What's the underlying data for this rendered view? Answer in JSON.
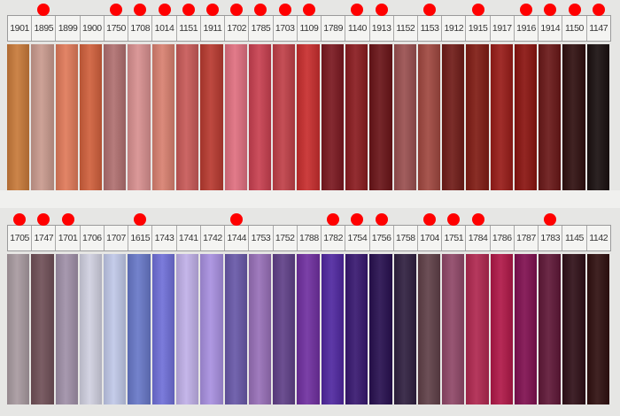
{
  "marker_color": "#ff0000",
  "rows": [
    {
      "swatches": [
        {
          "code": "1901",
          "color": "#c87a3a",
          "marked": false
        },
        {
          "code": "1895",
          "color": "#c99a8e",
          "marked": true
        },
        {
          "code": "1899",
          "color": "#e07a5a",
          "marked": false
        },
        {
          "code": "1900",
          "color": "#d0603c",
          "marked": false
        },
        {
          "code": "1750",
          "color": "#b07070",
          "marked": true
        },
        {
          "code": "1708",
          "color": "#d89090",
          "marked": true
        },
        {
          "code": "1014",
          "color": "#d88070",
          "marked": true
        },
        {
          "code": "1151",
          "color": "#c85a58",
          "marked": true
        },
        {
          "code": "1911",
          "color": "#b83a30",
          "marked": true
        },
        {
          "code": "1702",
          "color": "#e07080",
          "marked": true
        },
        {
          "code": "1785",
          "color": "#c84050",
          "marked": true
        },
        {
          "code": "1703",
          "color": "#c04048",
          "marked": true
        },
        {
          "code": "1109",
          "color": "#c82e2e",
          "marked": true
        },
        {
          "code": "1789",
          "color": "#7a1820",
          "marked": false
        },
        {
          "code": "1140",
          "color": "#8a1c20",
          "marked": true
        },
        {
          "code": "1913",
          "color": "#6a1418",
          "marked": true
        },
        {
          "code": "1152",
          "color": "#9a5050",
          "marked": false
        },
        {
          "code": "1153",
          "color": "#a04840",
          "marked": true
        },
        {
          "code": "1912",
          "color": "#701c18",
          "marked": false
        },
        {
          "code": "1915",
          "color": "#801c14",
          "marked": true
        },
        {
          "code": "1917",
          "color": "#981c18",
          "marked": false
        },
        {
          "code": "1916",
          "color": "#8a1410",
          "marked": true
        },
        {
          "code": "1914",
          "color": "#6a1818",
          "marked": true
        },
        {
          "code": "1150",
          "color": "#301010",
          "marked": true
        },
        {
          "code": "1147",
          "color": "#1a1010",
          "marked": true
        }
      ]
    },
    {
      "swatches": [
        {
          "code": "1705",
          "color": "#a89aa0",
          "marked": true
        },
        {
          "code": "1747",
          "color": "#705058",
          "marked": true
        },
        {
          "code": "1701",
          "color": "#a090a8",
          "marked": true
        },
        {
          "code": "1706",
          "color": "#d0d0e0",
          "marked": false
        },
        {
          "code": "1707",
          "color": "#c0c8e8",
          "marked": false
        },
        {
          "code": "1615",
          "color": "#6878c8",
          "marked": true
        },
        {
          "code": "1743",
          "color": "#7070d8",
          "marked": false
        },
        {
          "code": "1741",
          "color": "#c0b0e8",
          "marked": false
        },
        {
          "code": "1742",
          "color": "#a890e0",
          "marked": false
        },
        {
          "code": "1744",
          "color": "#6858a8",
          "marked": true
        },
        {
          "code": "1753",
          "color": "#9870b8",
          "marked": false
        },
        {
          "code": "1752",
          "color": "#604088",
          "marked": false
        },
        {
          "code": "1788",
          "color": "#7030a0",
          "marked": false
        },
        {
          "code": "1782",
          "color": "#5028a0",
          "marked": true
        },
        {
          "code": "1754",
          "color": "#381870",
          "marked": true
        },
        {
          "code": "1756",
          "color": "#281050",
          "marked": true
        },
        {
          "code": "1758",
          "color": "#302040",
          "marked": false
        },
        {
          "code": "1704",
          "color": "#604048",
          "marked": true
        },
        {
          "code": "1751",
          "color": "#904868",
          "marked": true
        },
        {
          "code": "1784",
          "color": "#b02850",
          "marked": true
        },
        {
          "code": "1786",
          "color": "#b01848",
          "marked": false
        },
        {
          "code": "1787",
          "color": "#801050",
          "marked": false
        },
        {
          "code": "1783",
          "color": "#601838",
          "marked": true
        },
        {
          "code": "1145",
          "color": "#301018",
          "marked": false
        },
        {
          "code": "1142",
          "color": "#301010",
          "marked": false
        }
      ]
    }
  ]
}
